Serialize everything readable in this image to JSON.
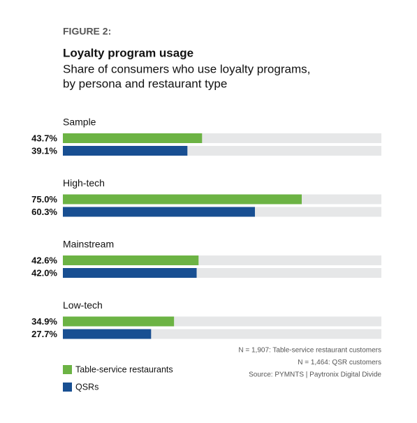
{
  "figure_label": "FIGURE 2:",
  "chart_data": {
    "type": "bar",
    "orientation": "horizontal",
    "title": "Loyalty program usage",
    "subtitle": [
      "Share of consumers who use loyalty programs,",
      "by persona and restaurant type"
    ],
    "categories": [
      "Sample",
      "High-tech",
      "Mainstream",
      "Low-tech"
    ],
    "xlim": [
      0,
      100
    ],
    "series": [
      {
        "name": "Table-service restaurants",
        "color": "#6cb344",
        "values": [
          43.7,
          75.0,
          42.6,
          34.9
        ],
        "value_labels": [
          "43.7%",
          "75.0%",
          "42.6%",
          "34.9%"
        ]
      },
      {
        "name": "QSRs",
        "color": "#184f92",
        "values": [
          39.1,
          60.3,
          42.0,
          27.7
        ],
        "value_labels": [
          "39.1%",
          "60.3%",
          "42.0%",
          "27.7%"
        ]
      }
    ],
    "track_color": "#e6e7e8",
    "notes": [
      "N = 1,907: Table-service restaurant customers",
      "N = 1,464: QSR customers",
      "Source: PYMNTS | Paytronix   Digital Divide"
    ]
  }
}
